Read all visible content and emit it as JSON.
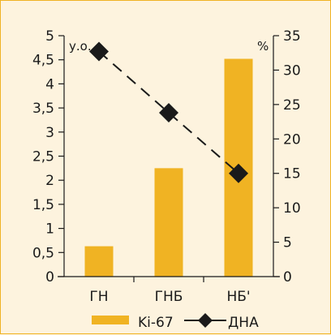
{
  "colors": {
    "bar": "#f0b323",
    "line": "#1a1a1a",
    "marker": "#1a1a1a",
    "background": "#fdf3de",
    "border": "#f0b323"
  },
  "chart_data": {
    "type": "bar",
    "categories": [
      "ГН",
      "ГНБ",
      "НБ'"
    ],
    "left_axis": {
      "unit_label": "у.о.",
      "ylim": [
        0,
        5
      ],
      "ticks": [
        "0",
        "0,5",
        "1",
        "1,5",
        "2",
        "2,5",
        "3",
        "3,5",
        "4",
        "4,5",
        "5"
      ]
    },
    "right_axis": {
      "unit_label": "%",
      "ylim": [
        0,
        35
      ],
      "ticks": [
        "0",
        "5",
        "10",
        "15",
        "20",
        "25",
        "30",
        "35"
      ]
    },
    "series": [
      {
        "name": "Ki-67",
        "type": "bar",
        "axis": "left",
        "values": [
          0.63,
          2.25,
          4.52
        ],
        "marker": "bar-icon"
      },
      {
        "name": "ДНА",
        "type": "line",
        "axis": "right",
        "style": "dashed",
        "marker": "diamond-icon",
        "values": [
          32.7,
          23.8,
          15.0
        ]
      }
    ],
    "legend": "bottom",
    "grid": false
  }
}
